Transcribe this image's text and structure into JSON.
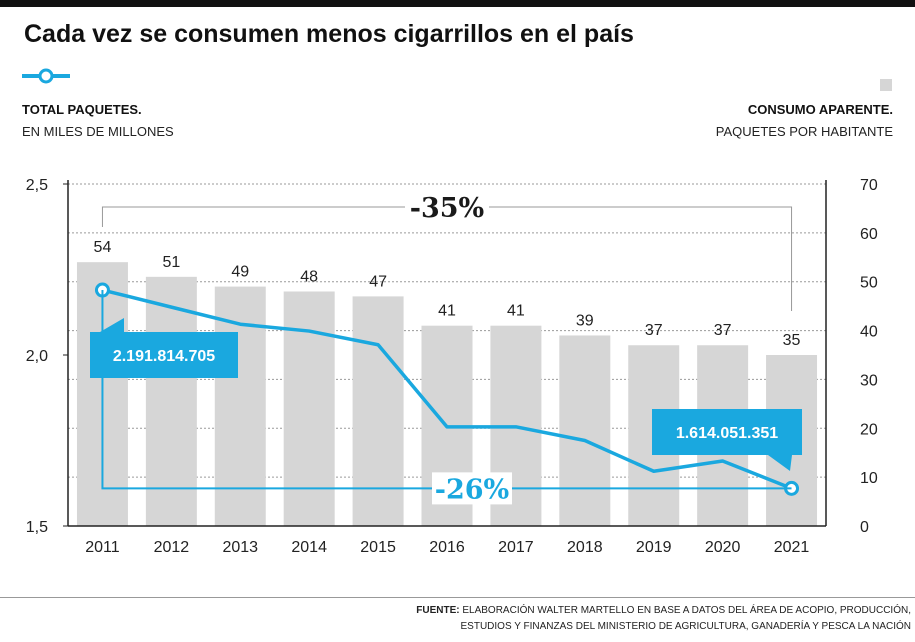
{
  "title": "Cada vez se consumen menos cigarrillos en el país",
  "left_label": {
    "main": "TOTAL PAQUETES.",
    "sub": "EN MILES DE MILLONES"
  },
  "right_label": {
    "main": "CONSUMO APARENTE.",
    "sub": "PAQUETES POR HABITANTE"
  },
  "colors": {
    "line": "#1aa8df",
    "bar": "#d6d6d6",
    "annotation": "#1aa8df",
    "bracket": "#999999"
  },
  "chart_data": {
    "type": "bar+line",
    "categories": [
      "2011",
      "2012",
      "2013",
      "2014",
      "2015",
      "2016",
      "2017",
      "2018",
      "2019",
      "2020",
      "2021"
    ],
    "series": [
      {
        "name": "Consumo aparente (paquetes por habitante)",
        "type": "bar",
        "axis": "right",
        "values": [
          54,
          51,
          49,
          48,
          47,
          41,
          41,
          39,
          37,
          37,
          35
        ]
      },
      {
        "name": "Total paquetes (miles de millones)",
        "type": "line",
        "axis": "left",
        "values": [
          2.19,
          2.14,
          2.09,
          2.07,
          2.03,
          1.79,
          1.79,
          1.75,
          1.66,
          1.69,
          1.61
        ]
      }
    ],
    "y_left": {
      "ticks": [
        "2,5",
        "2,0",
        "1,5"
      ],
      "ylim": [
        1.5,
        2.5
      ]
    },
    "y_right": {
      "ticks": [
        "70",
        "60",
        "50",
        "40",
        "30",
        "20",
        "10",
        "0"
      ],
      "ylim": [
        0,
        70
      ]
    },
    "annotations": {
      "start_value": "2.191.814.705",
      "end_value": "1.614.051.351",
      "bar_change": "-35%",
      "line_change": "-26%"
    }
  },
  "footer": {
    "label": "FUENTE:",
    "text1": "ELABORACIÓN WALTER MARTELLO EN BASE A DATOS DEL ÁREA DE ACOPIO, PRODUCCIÓN,",
    "text2": "ESTUDIOS Y FINANZAS DEL MINISTERIO DE AGRICULTURA, GANADERÍA Y PESCA LA NACIÓN"
  }
}
